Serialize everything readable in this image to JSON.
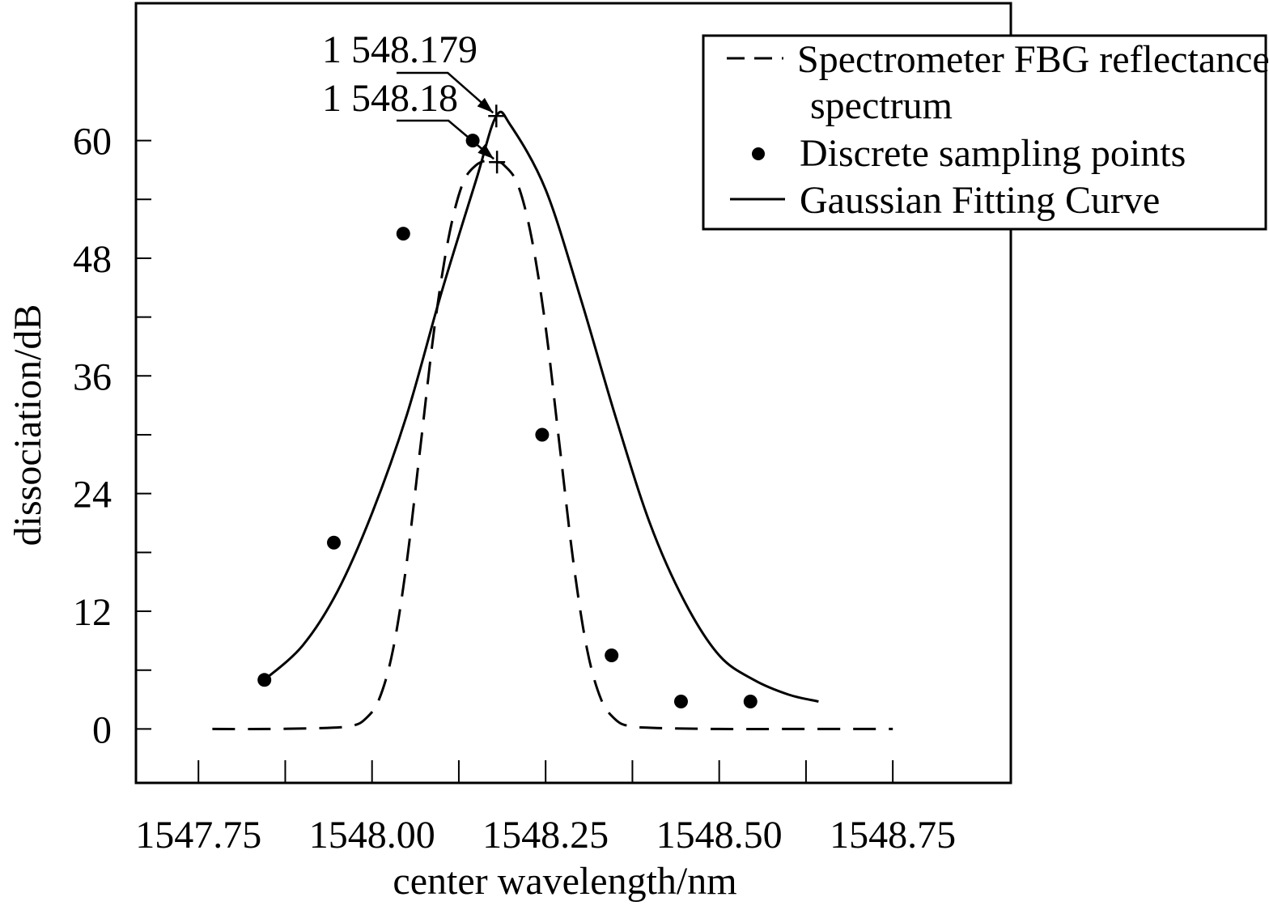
{
  "chart_data": {
    "type": "line",
    "xlabel": "center wavelength/nm",
    "ylabel": "dissociation/dB",
    "xlim": [
      1547.66,
      1548.92
    ],
    "ylim": [
      -5.5,
      74
    ],
    "x_ticks": [
      1547.75,
      1548.0,
      1548.25,
      1548.5,
      1548.75
    ],
    "x_tick_labels": [
      "1547.75",
      "1548.00",
      "1548.25",
      "1548.50",
      "1548.75"
    ],
    "x_minor_ticks": [
      1547.875,
      1548.125,
      1548.375,
      1548.625
    ],
    "y_ticks": [
      0,
      12,
      24,
      36,
      48,
      60
    ],
    "y_tick_labels": [
      "0",
      "12",
      "24",
      "36",
      "48",
      "60"
    ],
    "y_minor_ticks": [
      6,
      18,
      30,
      42,
      54
    ],
    "legend_position": "top-right",
    "legend": [
      {
        "label": "Spectrometer FBG reflectance spectrum",
        "style": "dashed"
      },
      {
        "label": "Discrete sampling points",
        "style": "marker"
      },
      {
        "label": "Gaussian Fitting Curve",
        "style": "solid"
      }
    ],
    "series": [
      {
        "name": "Spectrometer FBG reflectance spectrum",
        "style": "dashed",
        "x": [
          1547.77,
          1547.85,
          1547.93,
          1547.97,
          1547.99,
          1548.01,
          1548.03,
          1548.05,
          1548.07,
          1548.09,
          1548.11,
          1548.13,
          1548.15,
          1548.17,
          1548.18,
          1548.19,
          1548.21,
          1548.23,
          1548.25,
          1548.27,
          1548.29,
          1548.31,
          1548.33,
          1548.35,
          1548.37,
          1548.41,
          1548.5,
          1548.62,
          1548.75
        ],
        "y": [
          0,
          0,
          0.1,
          0.3,
          1.0,
          3.0,
          8.0,
          17.0,
          29.0,
          41.0,
          50.0,
          55.5,
          57.5,
          58.0,
          57.8,
          57.5,
          55.5,
          50.0,
          41.0,
          29.0,
          17.0,
          8.0,
          3.0,
          1.0,
          0.3,
          0.1,
          0,
          0,
          0
        ]
      },
      {
        "name": "Gaussian Fitting Curve",
        "style": "solid",
        "x": [
          1547.845,
          1547.9,
          1547.95,
          1548.0,
          1548.05,
          1548.1,
          1548.15,
          1548.179,
          1548.2,
          1548.25,
          1548.3,
          1548.35,
          1548.4,
          1548.45,
          1548.5,
          1548.55,
          1548.6,
          1548.643
        ],
        "y": [
          5.0,
          8.5,
          14.0,
          22.0,
          32.0,
          44.5,
          56.0,
          62.5,
          61.5,
          55.0,
          44.0,
          32.0,
          21.0,
          13.0,
          7.5,
          5.0,
          3.5,
          2.8
        ]
      },
      {
        "name": "Discrete sampling points",
        "style": "marker",
        "x": [
          1547.845,
          1547.945,
          1548.045,
          1548.145,
          1548.245,
          1548.345,
          1548.445,
          1548.545
        ],
        "y": [
          5.0,
          19.0,
          50.5,
          60.0,
          30.0,
          7.5,
          2.8,
          2.8
        ]
      }
    ],
    "annotations": [
      {
        "text": "1 548.179",
        "x": 1548.179,
        "y": 62.5
      },
      {
        "text": "1 548.18",
        "x": 1548.18,
        "y": 57.8
      }
    ]
  }
}
